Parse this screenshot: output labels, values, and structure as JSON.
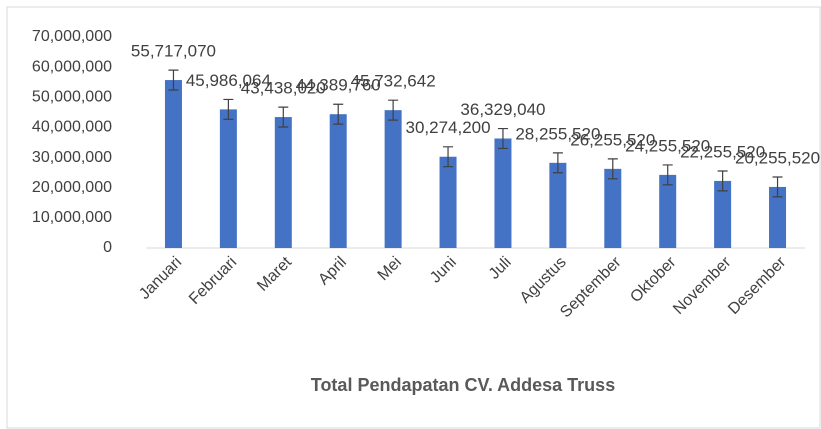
{
  "chart_data": {
    "type": "bar",
    "title": "Total Pendapatan CV. Addesa Truss",
    "categories": [
      "Januari",
      "Februari",
      "Maret",
      "April",
      "Mei",
      "Juni",
      "Juli",
      "Agustus",
      "September",
      "Oktober",
      "November",
      "Desember"
    ],
    "values": [
      55717070,
      45986064,
      43438020,
      44389760,
      45732642,
      30274200,
      36329040,
      28255520,
      26255520,
      24255520,
      22255520,
      20255520
    ],
    "value_labels": [
      "55,717,070",
      "45,986,064",
      "43,438,020",
      "44,389,760",
      "45,732,642",
      "30,274,200",
      "36,329,040",
      "28,255,520",
      "26,255,520",
      "24,255,520",
      "22,255,520",
      "20,255,520"
    ],
    "errors": [
      3300000,
      3300000,
      3300000,
      3300000,
      3300000,
      3300000,
      3300000,
      3300000,
      3300000,
      3300000,
      3300000,
      3300000
    ],
    "color": "#4472c4",
    "ylim": [
      0,
      70000000
    ],
    "yticks": [
      0,
      {
        "value": 10000000,
        "label": "10,000,000"
      },
      {
        "value": 20000000,
        "label": "20,000,000"
      },
      {
        "value": 30000000,
        "label": "30,000,000"
      },
      {
        "value": 40000000,
        "label": "40,000,000"
      },
      {
        "value": 50000000,
        "label": "50,000,000"
      },
      {
        "value": 60000000,
        "label": "60,000,000"
      },
      {
        "value": 70000000,
        "label": "70,000,000"
      }
    ],
    "grid": false
  }
}
